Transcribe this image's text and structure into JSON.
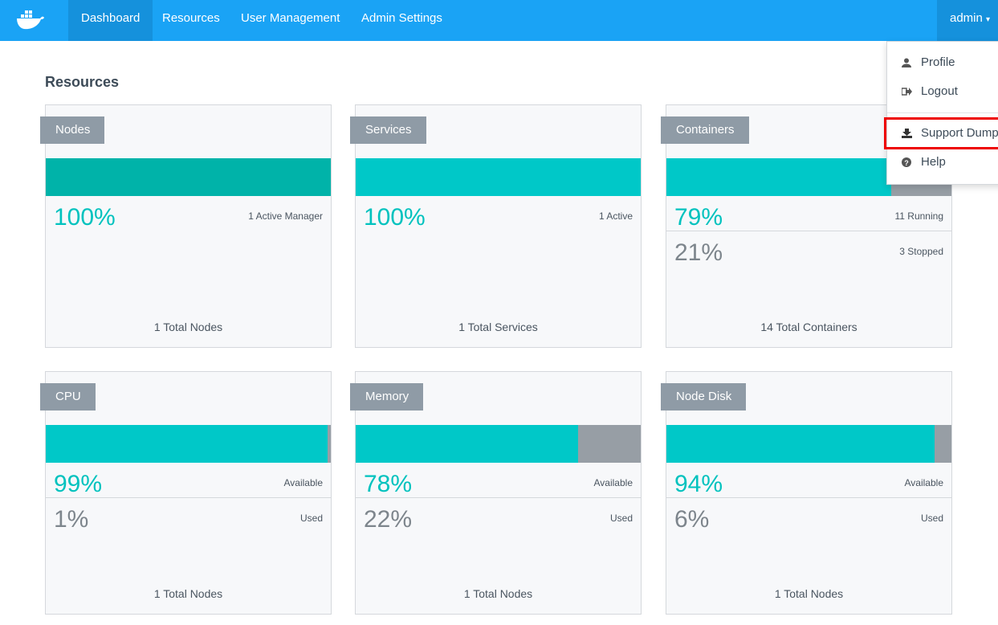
{
  "nav": {
    "items": [
      "Dashboard",
      "Resources",
      "User Management",
      "Admin Settings"
    ],
    "user": "admin"
  },
  "menu": {
    "items": [
      "Profile",
      "Logout",
      "Support Dump",
      "Help"
    ]
  },
  "page": {
    "title": "Resources"
  },
  "cards": [
    {
      "title": "Nodes",
      "rows": [
        {
          "value": 100,
          "label": "100%",
          "caption": "1 Active Manager",
          "color": "#00b3a9"
        }
      ],
      "total": "1 Total Nodes"
    },
    {
      "title": "Services",
      "rows": [
        {
          "value": 100,
          "label": "100%",
          "caption": "1 Active",
          "color": "#00c8c8"
        }
      ],
      "total": "1 Total Services"
    },
    {
      "title": "Containers",
      "rows": [
        {
          "value": 79,
          "label": "79%",
          "caption": "11 Running",
          "color": "#00c8c8"
        },
        {
          "value": 21,
          "label": "21%",
          "caption": "3 Stopped",
          "color": "#979ea5"
        }
      ],
      "total": "14 Total Containers"
    },
    {
      "title": "CPU",
      "rows": [
        {
          "value": 99,
          "label": "99%",
          "caption": "Available",
          "color": "#00c8c8"
        },
        {
          "value": 1,
          "label": "1%",
          "caption": "Used",
          "color": "#979ea5"
        }
      ],
      "total": "1 Total Nodes"
    },
    {
      "title": "Memory",
      "rows": [
        {
          "value": 78,
          "label": "78%",
          "caption": "Available",
          "color": "#00c8c8"
        },
        {
          "value": 22,
          "label": "22%",
          "caption": "Used",
          "color": "#979ea5"
        }
      ],
      "total": "1 Total Nodes"
    },
    {
      "title": "Node Disk",
      "rows": [
        {
          "value": 94,
          "label": "94%",
          "caption": "Available",
          "color": "#00c8c8"
        },
        {
          "value": 6,
          "label": "6%",
          "caption": "Used",
          "color": "#979ea5"
        }
      ],
      "total": "1 Total Nodes"
    }
  ]
}
